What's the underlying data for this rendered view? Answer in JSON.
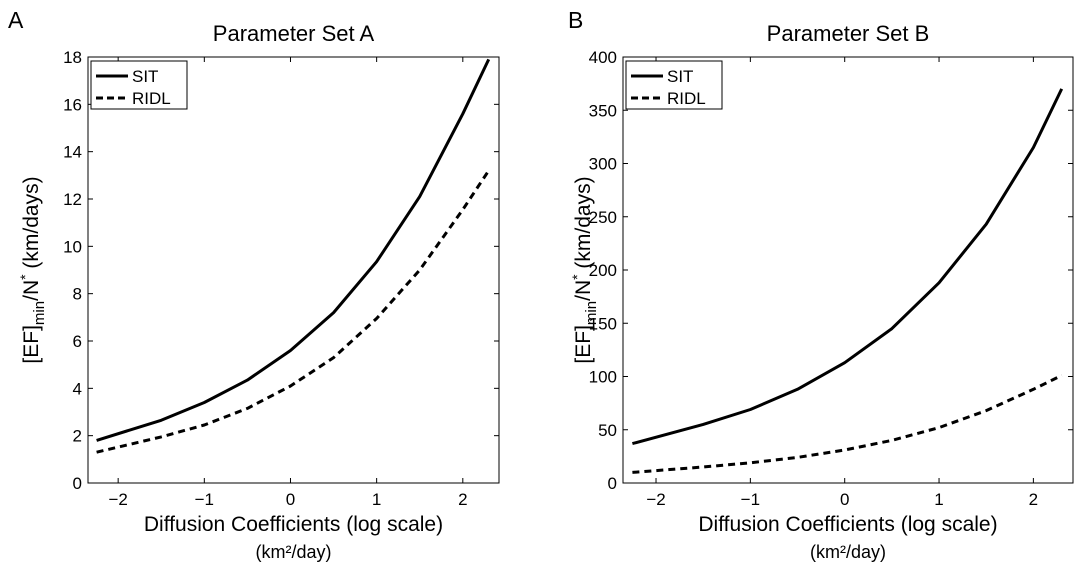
{
  "chart_data": [
    {
      "panel_label": "A",
      "type": "line",
      "title": "Parameter Set A",
      "xlabel": "Diffusion Coefficients (log scale)",
      "xlabel_units": "(km²/day)",
      "ylabel": "[EF]min/N* (km/days)",
      "ylabel_parts": {
        "main": "[EF]",
        "sub": "min",
        "slash": "/N",
        "sup": "*",
        "units": " (km/days)"
      },
      "xlim": [
        -2.35,
        2.42
      ],
      "ylim": [
        0,
        18
      ],
      "xticks": [
        -2,
        -1,
        0,
        1,
        2
      ],
      "xtick_labels": [
        "−2",
        "−1",
        "0",
        "1",
        "2"
      ],
      "yticks": [
        0,
        2,
        4,
        6,
        8,
        10,
        12,
        14,
        16,
        18
      ],
      "grid": false,
      "legend_position": "top-left",
      "x": [
        -2.25,
        -1.5,
        -1.0,
        -0.5,
        0.0,
        0.5,
        1.0,
        1.5,
        2.0,
        2.3
      ],
      "series": [
        {
          "name": "SIT",
          "style": "solid",
          "values": [
            1.8,
            2.65,
            3.4,
            4.35,
            5.6,
            7.2,
            9.35,
            12.1,
            15.6,
            17.9
          ]
        },
        {
          "name": "RIDL",
          "style": "dashed",
          "values": [
            1.3,
            1.95,
            2.45,
            3.15,
            4.1,
            5.3,
            6.95,
            9.0,
            11.55,
            13.2
          ]
        }
      ]
    },
    {
      "panel_label": "B",
      "type": "line",
      "title": "Parameter Set B",
      "xlabel": "Diffusion Coefficients (log scale)",
      "xlabel_units": "(km²/day)",
      "ylabel": "[EF]min/N* (km/days)",
      "ylabel_parts": {
        "main": "[EF]",
        "sub": "min",
        "slash": "/N",
        "sup": "*",
        "units": " (km/days)"
      },
      "xlim": [
        -2.35,
        2.42
      ],
      "ylim": [
        0,
        400
      ],
      "xticks": [
        -2,
        -1,
        0,
        1,
        2
      ],
      "xtick_labels": [
        "−2",
        "−1",
        "0",
        "1",
        "2"
      ],
      "yticks": [
        0,
        50,
        100,
        150,
        200,
        250,
        300,
        350,
        400
      ],
      "grid": false,
      "legend_position": "top-left",
      "x": [
        -2.25,
        -1.5,
        -1.0,
        -0.5,
        0.0,
        0.5,
        1.0,
        1.5,
        2.0,
        2.3
      ],
      "series": [
        {
          "name": "SIT",
          "style": "solid",
          "values": [
            37,
            55,
            69,
            88,
            113,
            145,
            188,
            243,
            315,
            370
          ]
        },
        {
          "name": "RIDL",
          "style": "dashed",
          "values": [
            10,
            15,
            19,
            24,
            31,
            40,
            52,
            68,
            88,
            101
          ]
        }
      ]
    }
  ]
}
